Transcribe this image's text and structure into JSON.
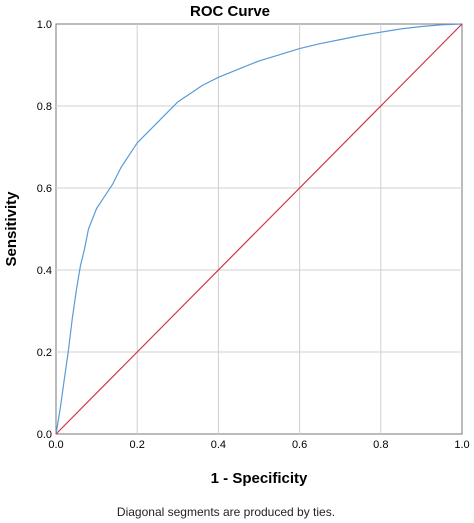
{
  "chart_data": {
    "type": "line",
    "title": "ROC Curve",
    "xlabel": "1 - Specificity",
    "ylabel": "Sensitivity",
    "xlim": [
      0,
      1
    ],
    "ylim": [
      0,
      1
    ],
    "x_ticks": [
      "0.0",
      "0.2",
      "0.4",
      "0.6",
      "0.8",
      "1.0"
    ],
    "y_ticks": [
      "0.0",
      "0.2",
      "0.4",
      "0.6",
      "0.8",
      "1.0"
    ],
    "grid": true,
    "footnote": "Diagonal segments are produced by ties.",
    "series": [
      {
        "color": "#5b9bd5",
        "x": [
          0.0,
          0.01,
          0.02,
          0.03,
          0.04,
          0.05,
          0.06,
          0.07,
          0.08,
          0.1,
          0.12,
          0.14,
          0.16,
          0.18,
          0.2,
          0.22,
          0.25,
          0.28,
          0.3,
          0.33,
          0.36,
          0.4,
          0.45,
          0.5,
          0.55,
          0.6,
          0.65,
          0.7,
          0.75,
          0.8,
          0.85,
          0.9,
          0.95,
          1.0
        ],
        "y": [
          0.0,
          0.06,
          0.13,
          0.2,
          0.28,
          0.35,
          0.41,
          0.45,
          0.5,
          0.55,
          0.58,
          0.61,
          0.65,
          0.68,
          0.71,
          0.73,
          0.76,
          0.79,
          0.81,
          0.83,
          0.85,
          0.87,
          0.89,
          0.91,
          0.925,
          0.94,
          0.952,
          0.962,
          0.972,
          0.98,
          0.988,
          0.994,
          0.998,
          1.0
        ]
      },
      {
        "color": "#d6304b",
        "x": [
          0,
          1
        ],
        "y": [
          0,
          1
        ]
      }
    ]
  }
}
